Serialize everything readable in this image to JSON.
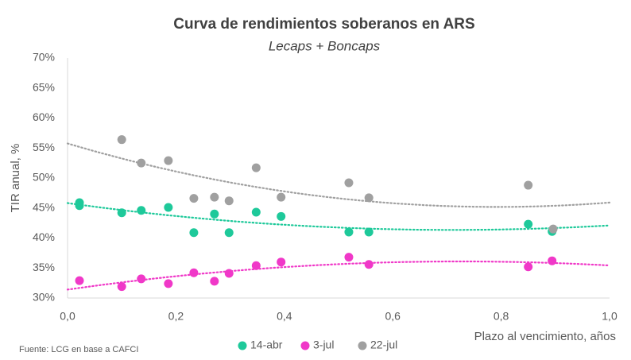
{
  "chart_data": {
    "type": "scatter",
    "title": "Curva de rendimientos soberanos en ARS",
    "subtitle": "Lecaps + Boncaps",
    "x_label": "Plazo al vencimiento, años",
    "y_label": "TIR anual, %",
    "source": "Fuente: LCG en base a CAFCI",
    "trendline": "polynomial",
    "trendline_order": 2,
    "legend": "bottom",
    "xlim": [
      0,
      1
    ],
    "xticks": [
      {
        "value": 0,
        "label": "0,0"
      },
      {
        "value": 0.2,
        "label": "0,2"
      },
      {
        "value": 0.4,
        "label": "0,4"
      },
      {
        "value": 0.6,
        "label": "0,6"
      },
      {
        "value": 0.8,
        "label": "0,8"
      },
      {
        "value": 1,
        "label": "1,0"
      }
    ],
    "ylim": [
      30,
      70
    ],
    "yticks": [
      {
        "value": 30,
        "label": "30%"
      },
      {
        "value": 35,
        "label": "35%"
      },
      {
        "value": 40,
        "label": "40%"
      },
      {
        "value": 45,
        "label": "45%"
      },
      {
        "value": 50,
        "label": "50%"
      },
      {
        "value": 55,
        "label": "55%"
      },
      {
        "value": 60,
        "label": "60%"
      },
      {
        "value": 65,
        "label": "65%"
      },
      {
        "value": 70,
        "label": "70%"
      }
    ],
    "series": [
      {
        "name": "14-abr",
        "color": "#1ec99a",
        "x": [
          0.022,
          0.022,
          0.1,
          0.136,
          0.186,
          0.233,
          0.271,
          0.298,
          0.348,
          0.394,
          0.519,
          0.556,
          0.85,
          0.894
        ],
        "values": [
          45.9,
          45.4,
          44.2,
          44.6,
          45.1,
          40.9,
          44.0,
          40.9,
          44.3,
          43.6,
          41.0,
          41.0,
          42.3,
          41.1
        ]
      },
      {
        "name": "3-jul",
        "color": "#f038c8",
        "x": [
          0.022,
          0.1,
          0.136,
          0.186,
          0.233,
          0.271,
          0.298,
          0.348,
          0.394,
          0.519,
          0.556,
          0.85,
          0.894
        ],
        "values": [
          32.9,
          31.9,
          33.2,
          32.4,
          34.2,
          32.8,
          34.1,
          35.4,
          36.0,
          36.8,
          35.6,
          35.2,
          36.2
        ]
      },
      {
        "name": "22-jul",
        "color": "#a0a0a0",
        "x": [
          0.1,
          0.136,
          0.186,
          0.233,
          0.271,
          0.298,
          0.348,
          0.394,
          0.519,
          0.556,
          0.85,
          0.896
        ],
        "values": [
          56.4,
          52.5,
          52.9,
          46.6,
          46.8,
          46.2,
          51.7,
          46.8,
          49.2,
          46.7,
          48.8,
          41.5
        ]
      }
    ]
  }
}
